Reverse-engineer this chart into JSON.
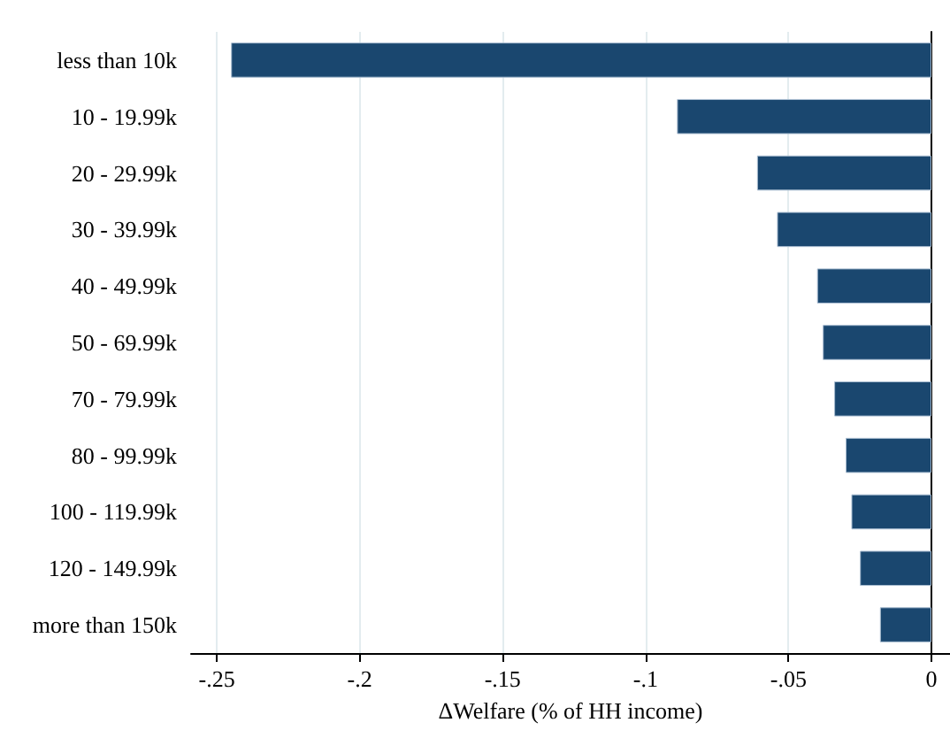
{
  "chart_data": {
    "type": "bar",
    "orientation": "horizontal",
    "xlabel": "ΔWelfare (% of HH income)",
    "categories": [
      "less than 10k",
      "10 - 19.99k",
      "20 - 29.99k",
      "30 - 39.99k",
      "40 - 49.99k",
      "50 - 69.99k",
      "70 - 79.99k",
      "80 - 99.99k",
      "100 - 119.99k",
      "120 - 149.99k",
      "more than 150k"
    ],
    "values": [
      -0.245,
      -0.089,
      -0.061,
      -0.054,
      -0.04,
      -0.038,
      -0.034,
      -0.03,
      -0.028,
      -0.025,
      -0.018
    ],
    "color": "#1a476f",
    "xlim": [
      -0.259,
      0.0065
    ],
    "xticks": [
      {
        "value": -0.25,
        "label": "-.25"
      },
      {
        "value": -0.2,
        "label": "-.2"
      },
      {
        "value": -0.15,
        "label": "-.15"
      },
      {
        "value": -0.1,
        "label": "-.1"
      },
      {
        "value": -0.05,
        "label": "-.05"
      },
      {
        "value": 0,
        "label": "0"
      }
    ],
    "grid": "x"
  }
}
